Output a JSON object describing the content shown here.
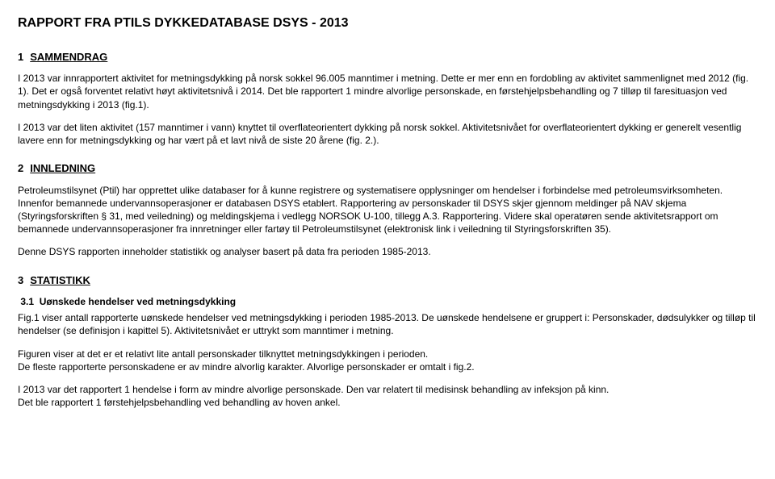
{
  "title": "RAPPORT FRA PTILS DYKKEDATABASE DSYS - 2013",
  "section1": {
    "num": "1",
    "label": "SAMMENDRAG",
    "p1": "I 2013 var innrapportert aktivitet for metningsdykking på norsk sokkel 96.005 manntimer i metning. Dette er mer enn en fordobling av aktivitet sammenlignet med 2012 (fig. 1). Det er også forventet relativt høyt aktivitetsnivå i 2014. Det ble rapportert 1 mindre alvorlige personskade, en førstehjelpsbehandling og 7 tilløp til faresituasjon ved metningsdykking i 2013 (fig.1).",
    "p2": "I 2013 var det liten aktivitet (157 manntimer i vann) knyttet til overflateorientert dykking på norsk sokkel. Aktivitetsnivået for overflateorientert dykking er generelt vesentlig lavere enn for metningsdykking og har vært på et lavt nivå de siste 20 årene (fig. 2.)."
  },
  "section2": {
    "num": "2",
    "label": "INNLEDNING",
    "p1": "Petroleumstilsynet (Ptil) har opprettet ulike databaser for å kunne registrere og systematisere opplysninger om hendelser i forbindelse med petroleumsvirksomheten. Innenfor bemannede undervannsoperasjoner er databasen DSYS etablert. Rapportering av personskader til DSYS skjer gjennom meldinger på NAV skjema (Styringsforskriften § 31, med veiledning) og meldingskjema i vedlegg NORSOK U-100, tillegg A.3. Rapportering. Videre skal operatøren sende aktivitetsrapport om bemannede undervannsoperasjoner fra innretninger eller fartøy til Petroleumstilsynet (elektronisk link i veiledning til Styringsforskriften 35).",
    "p2": "Denne DSYS rapporten inneholder statistikk og analyser basert på data fra perioden 1985-2013."
  },
  "section3": {
    "num": "3",
    "label": "STATISTIKK",
    "sub1": {
      "num": "3.1",
      "label": "Uønskede hendelser ved metningsdykking",
      "p1": "Fig.1 viser antall rapporterte uønskede hendelser ved metningsdykking i perioden 1985-2013. De uønskede hendelsene er gruppert i: Personskader, dødsulykker og tilløp til hendelser (se definisjon i kapittel 5). Aktivitetsnivået er uttrykt som manntimer i metning.",
      "p2a": "Figuren viser at det er et relativt lite antall personskader tilknyttet metningsdykkingen i perioden.",
      "p2b": "De fleste rapporterte personskadene er av mindre alvorlig karakter. Alvorlige personskader er omtalt i fig.2.",
      "p3a": "I 2013 var det rapportert 1 hendelse i form av mindre alvorlige personskade. Den var relatert til medisinsk behandling av infeksjon på kinn.",
      "p3b": "Det ble rapportert 1 førstehjelpsbehandling ved behandling av hoven ankel."
    }
  }
}
